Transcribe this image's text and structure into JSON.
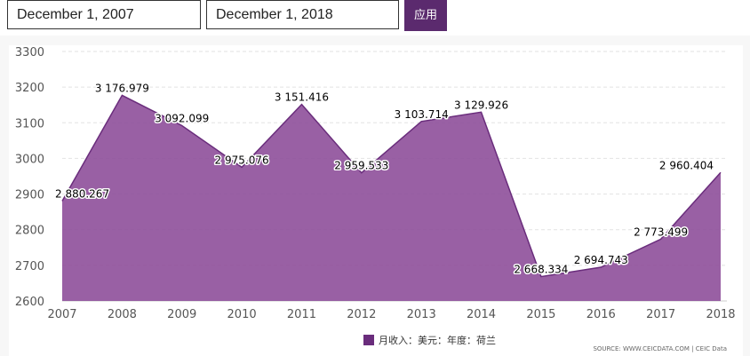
{
  "controls": {
    "start_date": "December 1, 2007",
    "end_date": "December 1, 2018",
    "apply_label": "应用"
  },
  "colors": {
    "area_fill": "#8e4f9a",
    "area_line": "#6a2d7c",
    "accent": "#5b2a6e"
  },
  "chart_data": {
    "type": "area",
    "x": [
      "2007",
      "2008",
      "2009",
      "2010",
      "2011",
      "2012",
      "2013",
      "2014",
      "2015",
      "2016",
      "2017",
      "2018"
    ],
    "series": [
      {
        "name": "月收入：美元：年度：荷兰",
        "values": [
          2880.267,
          3176.979,
          3092.099,
          2975.076,
          3151.416,
          2959.533,
          3103.714,
          3129.926,
          2668.334,
          2694.743,
          2773.499,
          2960.404
        ]
      }
    ],
    "data_labels": [
      "2 880.267",
      "3 176.979",
      "3 092.099",
      "2 975.076",
      "3 151.416",
      "2 959.533",
      "3 103.714",
      "3 129.926",
      "2 668.334",
      "2 694.743",
      "2 773.499",
      "2 960.404"
    ],
    "y_ticks": [
      "2600",
      "2700",
      "2800",
      "2900",
      "3000",
      "3100",
      "3200",
      "3300"
    ],
    "ylim": [
      2600,
      3300
    ],
    "grid": true,
    "legend_position": "bottom-center",
    "source": "SOURCE: WWW.CEICDATA.COM | CEIC Data"
  }
}
